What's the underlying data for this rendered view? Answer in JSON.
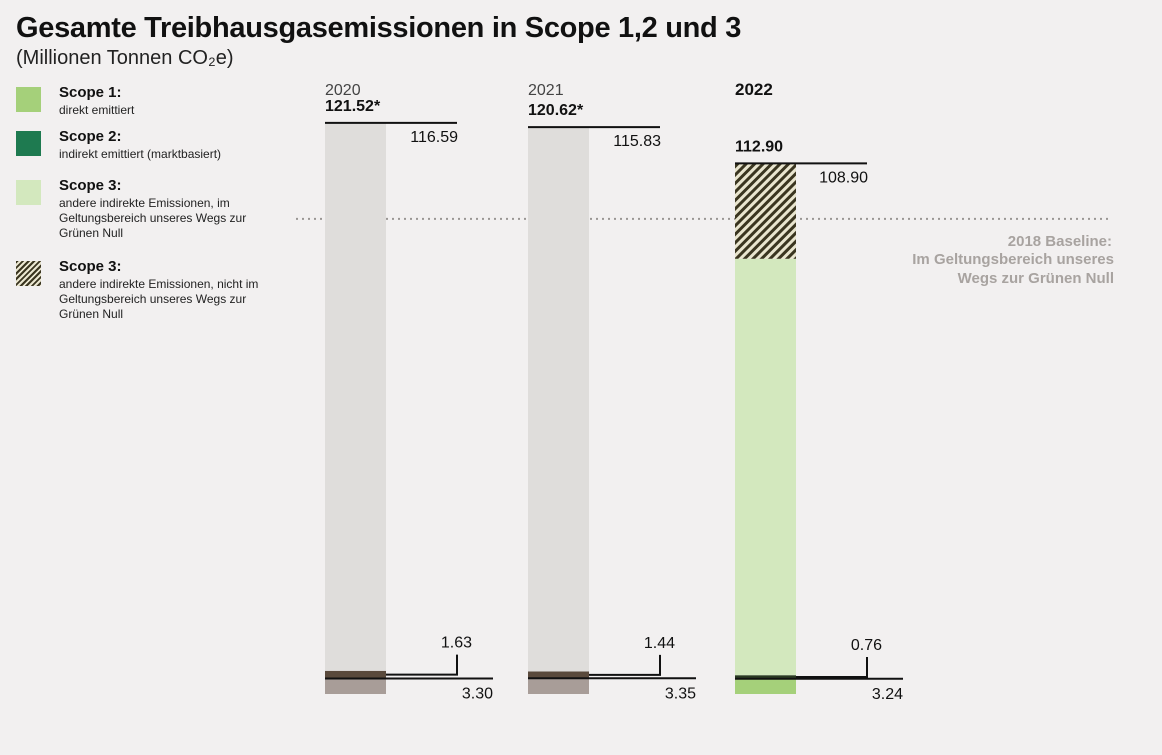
{
  "title": "Gesamte Treibhausgasemissionen in Scope 1,2 und 3",
  "subtitle": "(Millionen Tonnen CO₂e)",
  "legend": [
    {
      "label": "Scope 1:",
      "desc": "direkt emittiert",
      "color": "#a5d07a",
      "pattern": false
    },
    {
      "label": "Scope 2:",
      "desc": "indirekt emittiert (marktbasiert)",
      "color": "#1e7a50",
      "pattern": false
    },
    {
      "label": "Scope 3:",
      "desc": "andere indirekte Emissionen, im Geltungsbereich unseres Wegs zur Grünen Null",
      "color": "#d3e8be",
      "pattern": false
    },
    {
      "label": "Scope 3:",
      "desc": "andere indirekte Emissionen, nicht im Geltungsbereich unseres Wegs zur Grünen Null",
      "color": "#3a3520",
      "pattern": true
    }
  ],
  "baseline": {
    "line1": "2018 Baseline:",
    "line2": "Im Geltungsbereich unseres",
    "line3": "Wegs zur Grünen Null"
  },
  "colors": {
    "grey_bar": "#dfdddb",
    "grey_dark": "#5a4a3c",
    "grey_light": "#a89d98",
    "scope1": "#a5d07a",
    "scope2": "#2a3a22",
    "scope3_in": "#d3e8be",
    "hatch": "#3a3520",
    "baseline_text": "#a8a3a0",
    "baseline_line": "#9a9694"
  },
  "chart_data": {
    "type": "bar",
    "categories": [
      "2020",
      "2021",
      "2022"
    ],
    "totals": [
      "121.52*",
      "120.62*",
      "112.90"
    ],
    "scope3_labels": [
      "116.59",
      "115.83",
      "108.90"
    ],
    "scope2_labels": [
      "1.63",
      "1.44",
      "0.76"
    ],
    "scope1_labels": [
      "3.30",
      "3.35",
      "3.24"
    ],
    "series": [
      {
        "name": "Scope 1",
        "values": [
          3.3,
          3.35,
          3.24
        ]
      },
      {
        "name": "Scope 2",
        "values": [
          1.63,
          1.44,
          0.76
        ]
      },
      {
        "name": "Scope 3 im Geltungsbereich",
        "values": [
          null,
          null,
          88.6
        ]
      },
      {
        "name": "Scope 3 nicht im Geltungsbereich",
        "values": [
          null,
          null,
          20.3
        ]
      },
      {
        "name": "Scope 3",
        "values": [
          116.59,
          115.83,
          108.9
        ]
      }
    ],
    "baseline_value": 101.1,
    "highlight_category": "2022"
  }
}
